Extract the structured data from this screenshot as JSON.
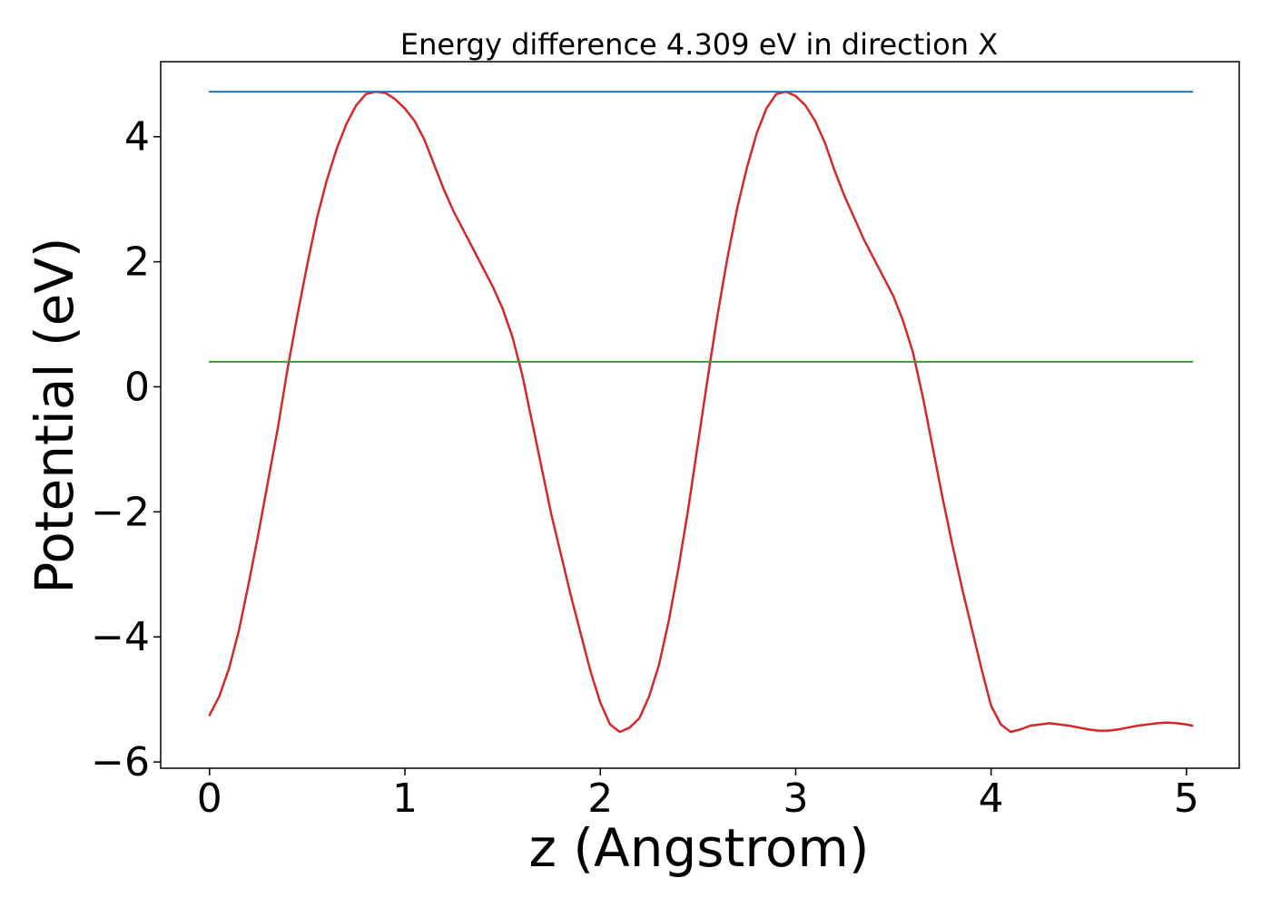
{
  "chart_data": {
    "type": "line",
    "title": "Energy difference 4.309 eV in direction X",
    "xlabel": "z (Angstrom)",
    "ylabel": "Potential (eV)",
    "xlim": [
      -0.25,
      5.27
    ],
    "ylim": [
      -6.1,
      5.2
    ],
    "xticks": [
      0,
      1,
      2,
      3,
      4,
      5
    ],
    "yticks": [
      -6,
      -4,
      -2,
      0,
      2,
      4
    ],
    "grid": false,
    "legend": "none",
    "colors": {
      "potential": "#d62728",
      "max_line": "#1f77b4",
      "mean_line": "#2ca02c"
    },
    "series": [
      {
        "key": "potential",
        "x": [
          0.0,
          0.05,
          0.1,
          0.15,
          0.2,
          0.25,
          0.3,
          0.35,
          0.4,
          0.45,
          0.5,
          0.55,
          0.6,
          0.65,
          0.7,
          0.75,
          0.8,
          0.85,
          0.9,
          0.95,
          1.0,
          1.05,
          1.1,
          1.15,
          1.2,
          1.25,
          1.3,
          1.35,
          1.4,
          1.45,
          1.5,
          1.55,
          1.6,
          1.65,
          1.7,
          1.75,
          1.8,
          1.85,
          1.9,
          1.95,
          2.0,
          2.05,
          2.1,
          2.15,
          2.2,
          2.25,
          2.3,
          2.35,
          2.4,
          2.45,
          2.5,
          2.55,
          2.6,
          2.65,
          2.7,
          2.75,
          2.8,
          2.85,
          2.9,
          2.95,
          3.0,
          3.05,
          3.1,
          3.15,
          3.2,
          3.25,
          3.3,
          3.35,
          3.4,
          3.45,
          3.5,
          3.55,
          3.6,
          3.65,
          3.7,
          3.75,
          3.8,
          3.85,
          3.9,
          3.95,
          4.0,
          4.05,
          4.1,
          4.15,
          4.2,
          4.25,
          4.3,
          4.35,
          4.4,
          4.45,
          4.5,
          4.55,
          4.6,
          4.65,
          4.7,
          4.75,
          4.8,
          4.85,
          4.9,
          4.95,
          5.0,
          5.03
        ],
        "y": [
          -5.25,
          -4.95,
          -4.5,
          -3.9,
          -3.15,
          -2.35,
          -1.5,
          -0.65,
          0.3,
          1.15,
          1.95,
          2.7,
          3.3,
          3.8,
          4.2,
          4.5,
          4.68,
          4.72,
          4.7,
          4.6,
          4.45,
          4.25,
          3.95,
          3.55,
          3.15,
          2.8,
          2.5,
          2.2,
          1.9,
          1.6,
          1.25,
          0.8,
          0.2,
          -0.55,
          -1.3,
          -2.05,
          -2.7,
          -3.35,
          -3.95,
          -4.55,
          -5.05,
          -5.4,
          -5.52,
          -5.45,
          -5.3,
          -4.95,
          -4.45,
          -3.75,
          -2.9,
          -1.95,
          -0.9,
          0.15,
          1.15,
          2.05,
          2.85,
          3.5,
          4.05,
          4.45,
          4.68,
          4.72,
          4.65,
          4.5,
          4.25,
          3.9,
          3.45,
          3.05,
          2.7,
          2.35,
          2.05,
          1.75,
          1.45,
          1.05,
          0.55,
          -0.15,
          -0.95,
          -1.75,
          -2.5,
          -3.2,
          -3.85,
          -4.5,
          -5.1,
          -5.4,
          -5.52,
          -5.48,
          -5.42,
          -5.4,
          -5.38,
          -5.4,
          -5.42,
          -5.45,
          -5.48,
          -5.5,
          -5.5,
          -5.48,
          -5.45,
          -5.42,
          -5.4,
          -5.38,
          -5.37,
          -5.38,
          -5.4,
          -5.42
        ]
      },
      {
        "key": "max_line",
        "x": [
          0.0,
          5.03
        ],
        "y": [
          4.72,
          4.72
        ]
      },
      {
        "key": "mean_line",
        "x": [
          0.0,
          5.03
        ],
        "y": [
          0.4,
          0.4
        ]
      }
    ]
  }
}
